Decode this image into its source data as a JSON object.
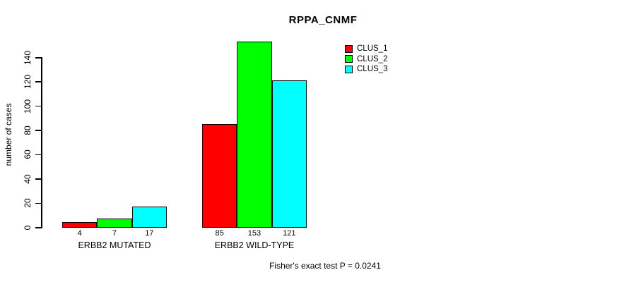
{
  "chart_data": {
    "type": "bar",
    "title": "RPPA_CNMF",
    "xlabel": "",
    "ylabel": "number of cases",
    "categories": [
      "ERBB2 MUTATED",
      "ERBB2 WILD-TYPE"
    ],
    "series": [
      {
        "name": "CLUS_1",
        "color": "#ff0000",
        "values": [
          4,
          85
        ]
      },
      {
        "name": "CLUS_2",
        "color": "#00ff00",
        "values": [
          7,
          153
        ]
      },
      {
        "name": "CLUS_3",
        "color": "#00ffff",
        "values": [
          17,
          121
        ]
      }
    ],
    "bar_value_labels": [
      [
        "4",
        "7",
        "17"
      ],
      [
        "85",
        "153",
        "121"
      ]
    ],
    "yticks": [
      0,
      20,
      40,
      60,
      80,
      100,
      120,
      140
    ],
    "ylim": [
      0,
      153
    ],
    "grid": false,
    "legend_position": "top-right",
    "bar_border_color": "#000000"
  },
  "footer": "Fisher's exact test P = 0.0241"
}
